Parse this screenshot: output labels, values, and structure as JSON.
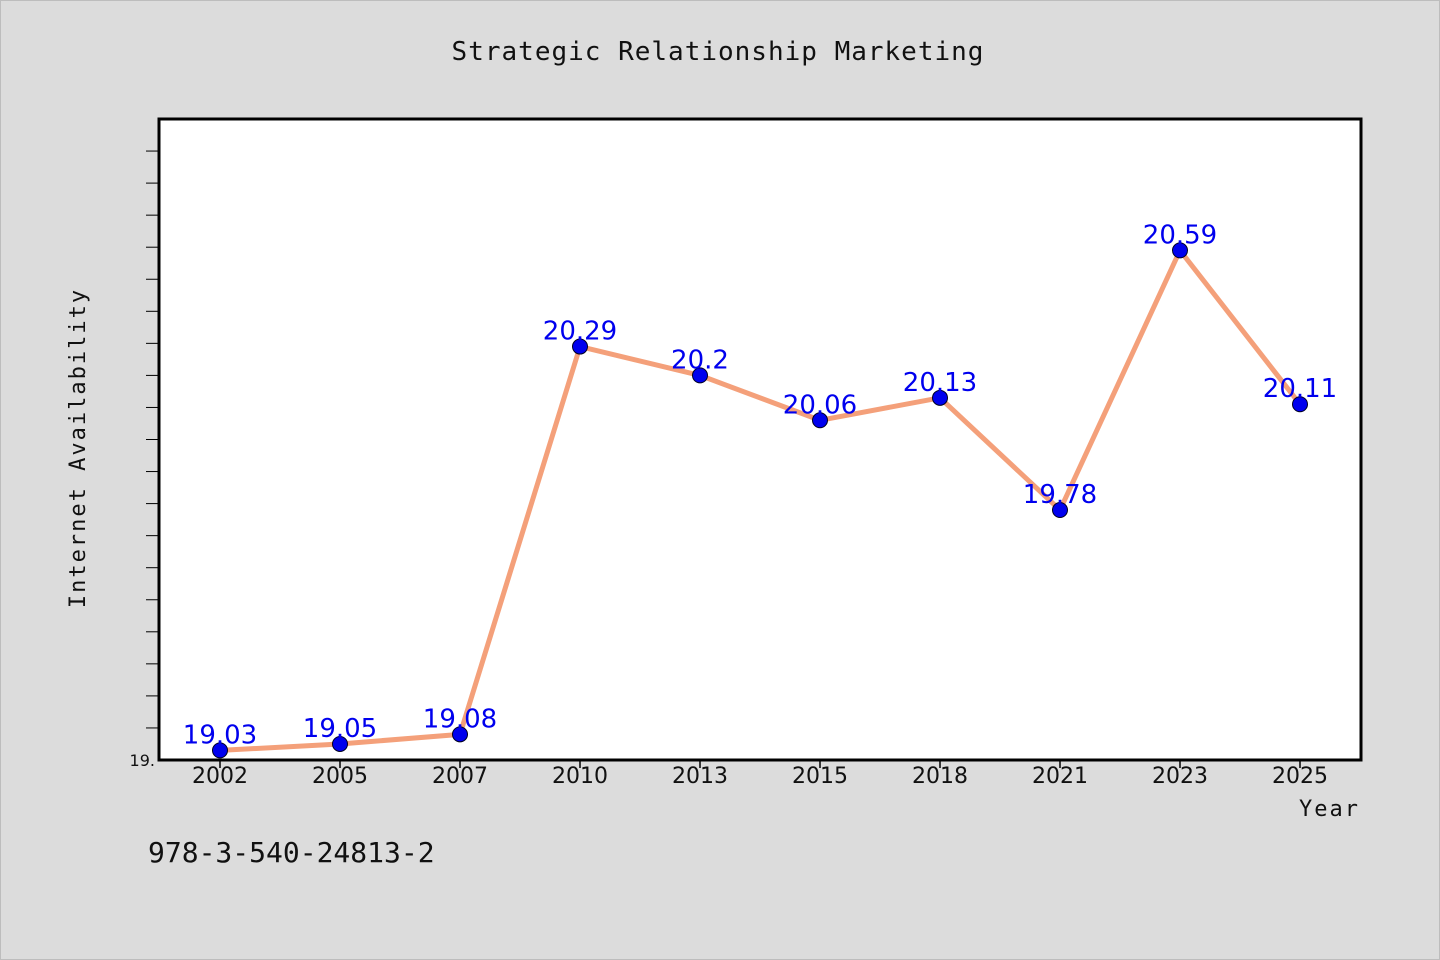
{
  "chart_data": {
    "type": "line",
    "title": "Strategic Relationship Marketing",
    "xlabel": "Year",
    "ylabel": "Internet Availability",
    "x": [
      "2002",
      "2005",
      "2007",
      "2010",
      "2013",
      "2015",
      "2018",
      "2021",
      "2023",
      "2025"
    ],
    "series": [
      {
        "values": [
          19.03,
          19.05,
          19.08,
          20.29,
          20.2,
          20.06,
          20.13,
          19.78,
          20.59,
          20.11
        ]
      }
    ],
    "data_labels": [
      "19.03",
      "19.05",
      "19.08",
      "20.29",
      "20.2",
      "20.06",
      "20.13",
      "19.78",
      "20.59",
      "20.11"
    ],
    "ylim": [
      19.0,
      21.0
    ],
    "y_tick_label": "19.",
    "grid": false,
    "legend": "none",
    "colors": {
      "line": "#f4a07a",
      "marker": "#0000ee",
      "data_label": "#0000ee",
      "background": "#dcdcdc",
      "plot_background": "#ffffff"
    }
  },
  "footer": {
    "isbn": "978-3-540-24813-2"
  }
}
